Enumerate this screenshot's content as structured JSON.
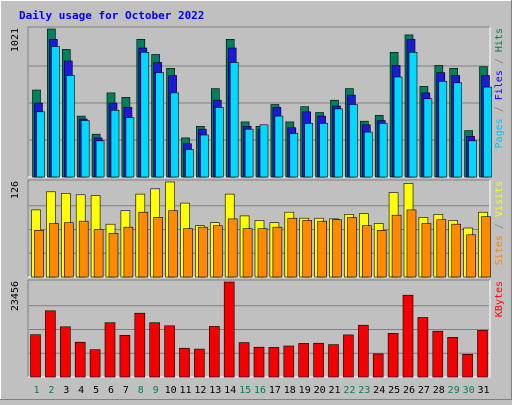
{
  "chart_data": {
    "type": "bar",
    "title": "Daily usage for October 2022",
    "categories": [
      "1",
      "2",
      "3",
      "4",
      "5",
      "6",
      "7",
      "8",
      "9",
      "10",
      "11",
      "12",
      "13",
      "14",
      "15",
      "16",
      "17",
      "18",
      "19",
      "20",
      "21",
      "22",
      "23",
      "24",
      "25",
      "26",
      "27",
      "28",
      "29",
      "30",
      "31"
    ],
    "weekend_days": [
      "1",
      "2",
      "8",
      "9",
      "15",
      "16",
      "22",
      "23",
      "29",
      "30"
    ],
    "panels": [
      {
        "id": "hits",
        "ymax_label": "1021",
        "ymax": 1021,
        "legend": [
          {
            "text": "Pages",
            "color": "#00c0ff"
          },
          {
            "text": " / ",
            "color": "#808080"
          },
          {
            "text": "Files",
            "color": "#0000ff"
          },
          {
            "text": " / ",
            "color": "#808080"
          },
          {
            "text": "Hits",
            "color": "#008040"
          }
        ],
        "series": [
          {
            "name": "Hits",
            "color": "#00805c",
            "values": [
              600,
              1021,
              880,
              420,
              295,
              580,
              550,
              950,
              845,
              750,
              270,
              350,
              610,
              950,
              380,
              350,
              500,
              380,
              485,
              445,
              530,
              610,
              385,
              425,
              860,
              980,
              625,
              770,
              750,
              320,
              760
            ]
          },
          {
            "name": "Files",
            "color": "#1a1ad8",
            "values": [
              510,
              950,
              800,
              400,
              270,
              510,
              480,
              890,
              790,
              700,
              230,
              330,
              530,
              890,
              350,
              330,
              480,
              340,
              450,
              420,
              490,
              565,
              360,
              390,
              770,
              950,
              580,
              720,
              700,
              280,
              700
            ]
          },
          {
            "name": "Pages",
            "color": "#00d8ff",
            "values": [
              450,
              900,
              700,
              390,
              250,
              460,
              410,
              860,
              720,
              580,
              190,
              290,
              480,
              790,
              330,
              360,
              420,
              300,
              370,
              370,
              470,
              500,
              310,
              370,
              690,
              860,
              540,
              660,
              650,
              250,
              620
            ]
          }
        ]
      },
      {
        "id": "visits",
        "ymax_label": "126",
        "ymax": 126,
        "legend": [
          {
            "text": "Sites",
            "color": "#ff8000"
          },
          {
            "text": " / ",
            "color": "#808080"
          },
          {
            "text": "Visits",
            "color": "#ffff00"
          }
        ],
        "series": [
          {
            "name": "Visits",
            "color": "#ffff00",
            "values": [
              89,
              113,
              111,
              109,
              108,
              70,
              88,
              110,
              117,
              126,
              98,
              68,
              72,
              110,
              81,
              75,
              72,
              86,
              78,
              78,
              77,
              83,
              84,
              71,
              112,
              124,
              79,
              83,
              75,
              65,
              86
            ]
          },
          {
            "name": "Sites",
            "color": "#ff8a00",
            "values": [
              62,
              71,
              72,
              74,
              63,
              58,
              66,
              86,
              79,
              88,
              64,
              66,
              68,
              77,
              64,
              64,
              66,
              78,
              75,
              74,
              76,
              79,
              68,
              62,
              82,
              89,
              71,
              76,
              70,
              56,
              80
            ]
          }
        ]
      },
      {
        "id": "kbytes",
        "ymax_label": "23456",
        "ymax": 23456,
        "legend": [
          {
            "text": "KBytes",
            "color": "#ff0000"
          }
        ],
        "series": [
          {
            "name": "KBytes",
            "color": "#f40000",
            "values": [
              10450,
              16350,
              12400,
              8600,
              6750,
              13400,
              10300,
              15750,
              13400,
              12650,
              7100,
              6900,
              12500,
              23456,
              8500,
              7350,
              7300,
              7650,
              8300,
              8350,
              8000,
              10400,
              12800,
              5700,
              10800,
              20200,
              14700,
              11300,
              9800,
              5600,
              11500
            ]
          }
        ]
      }
    ]
  }
}
